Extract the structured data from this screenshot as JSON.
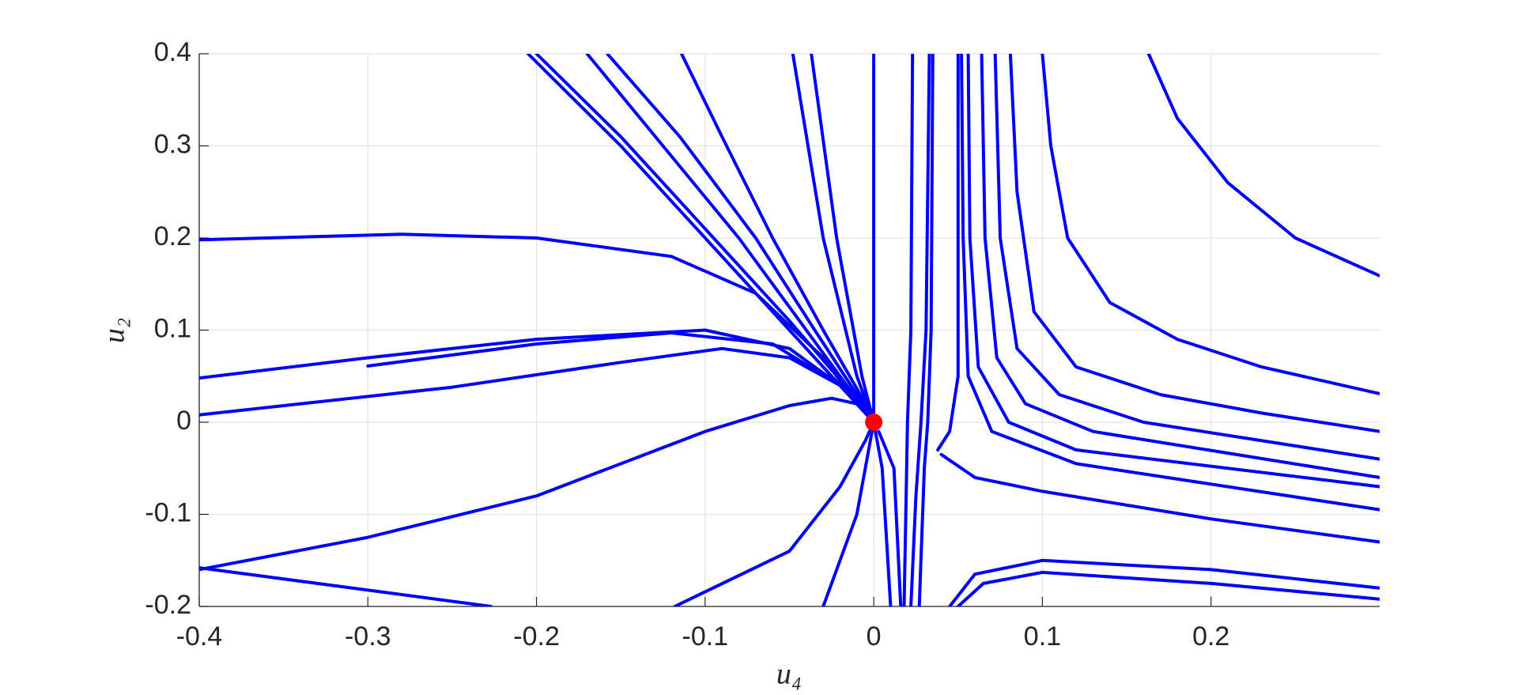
{
  "chart_data": {
    "type": "line",
    "xlabel": "u₄",
    "ylabel": "u₂",
    "xlim": [
      -0.4,
      0.3
    ],
    "ylim": [
      -0.2,
      0.4
    ],
    "xticks": [
      -0.4,
      -0.3,
      -0.2,
      -0.1,
      0,
      0.1,
      0.2
    ],
    "yticks": [
      -0.2,
      -0.1,
      0,
      0.1,
      0.2,
      0.3,
      0.4
    ],
    "grid": true,
    "series": [
      {
        "color": "#0000ff",
        "x": [
          -0.4,
          -0.28,
          -0.2,
          -0.12,
          -0.07,
          -0.03,
          -0.01,
          0
        ],
        "y": [
          0.198,
          0.204,
          0.2,
          0.18,
          0.14,
          0.07,
          0.02,
          0
        ]
      },
      {
        "color": "#0000ff",
        "x": [
          0,
          -0.02,
          -0.05,
          -0.1,
          -0.2,
          -0.3,
          -0.4
        ],
        "y": [
          0,
          0.04,
          0.08,
          0.1,
          0.09,
          0.07,
          0.048
        ]
      },
      {
        "color": "#0000ff",
        "x": [
          -0.3,
          -0.2,
          -0.12,
          -0.06,
          -0.02,
          0
        ],
        "y": [
          0.061,
          0.085,
          0.097,
          0.085,
          0.04,
          0
        ]
      },
      {
        "color": "#0000ff",
        "x": [
          0,
          -0.02,
          -0.05,
          -0.09,
          -0.15,
          -0.25,
          -0.4
        ],
        "y": [
          0,
          0.04,
          0.07,
          0.08,
          0.065,
          0.038,
          0.008
        ]
      },
      {
        "color": "#0000ff",
        "x": [
          0,
          -0.01,
          -0.025,
          -0.05,
          -0.1,
          -0.2,
          -0.3,
          -0.4
        ],
        "y": [
          0,
          0.02,
          0.026,
          0.018,
          -0.01,
          -0.08,
          -0.125,
          -0.16
        ]
      },
      {
        "color": "#0000ff",
        "x": [
          -0.4,
          -0.227
        ],
        "y": [
          -0.158,
          -0.2
        ]
      },
      {
        "color": "#0000ff",
        "x": [
          -0.118,
          -0.05,
          -0.02,
          -0.005,
          0
        ],
        "y": [
          -0.2,
          -0.14,
          -0.07,
          -0.02,
          0
        ]
      },
      {
        "color": "#0000ff",
        "x": [
          -0.03,
          -0.01,
          0
        ],
        "y": [
          -0.2,
          -0.1,
          0
        ]
      },
      {
        "color": "#0000ff",
        "x": [
          0,
          -0.01,
          -0.05,
          -0.1,
          -0.15,
          -0.205
        ],
        "y": [
          0,
          0.02,
          0.1,
          0.2,
          0.3,
          0.4
        ]
      },
      {
        "color": "#0000ff",
        "x": [
          0,
          -0.01,
          -0.05,
          -0.1,
          -0.15,
          -0.2
        ],
        "y": [
          0,
          0.025,
          0.11,
          0.21,
          0.31,
          0.4
        ]
      },
      {
        "color": "#0000ff",
        "x": [
          0,
          -0.01,
          -0.04,
          -0.08,
          -0.125,
          -0.17
        ],
        "y": [
          0,
          0.025,
          0.1,
          0.2,
          0.3,
          0.4
        ]
      },
      {
        "color": "#0000ff",
        "x": [
          0,
          -0.01,
          -0.035,
          -0.07,
          -0.115,
          -0.158
        ],
        "y": [
          0,
          0.03,
          0.1,
          0.2,
          0.31,
          0.4
        ]
      },
      {
        "color": "#0000ff",
        "x": [
          0,
          -0.008,
          -0.03,
          -0.06,
          -0.09,
          -0.114
        ],
        "y": [
          0,
          0.03,
          0.1,
          0.2,
          0.31,
          0.4
        ]
      },
      {
        "color": "#0000ff",
        "x": [
          -0.048,
          -0.03,
          -0.01,
          0
        ],
        "y": [
          0.4,
          0.2,
          0.05,
          0
        ]
      },
      {
        "color": "#0000ff",
        "x": [
          -0.037,
          -0.022,
          -0.007,
          0
        ],
        "y": [
          0.4,
          0.2,
          0.05,
          0
        ]
      },
      {
        "color": "#0000ff",
        "x": [
          0,
          0,
          0
        ],
        "y": [
          0.4,
          0.1,
          0
        ]
      },
      {
        "color": "#0000ff",
        "x": [
          0.023,
          0.022,
          0.02,
          0.019,
          0.018
        ],
        "y": [
          0.4,
          0.1,
          0.0,
          -0.1,
          -0.2
        ]
      },
      {
        "color": "#0000ff",
        "x": [
          0.033,
          0.031,
          0.028,
          0.025,
          0.022
        ],
        "y": [
          0.4,
          0.1,
          0.0,
          -0.08,
          -0.2
        ]
      },
      {
        "color": "#0000ff",
        "x": [
          0.035,
          0.034,
          0.032,
          0.03,
          0.027
        ],
        "y": [
          0.4,
          0.1,
          0.0,
          -0.05,
          -0.2
        ]
      },
      {
        "color": "#0000ff",
        "x": [
          0.01,
          0.005,
          0
        ],
        "y": [
          -0.2,
          -0.05,
          0
        ]
      },
      {
        "color": "#0000ff",
        "x": [
          0.016,
          0.012,
          0.003
        ],
        "y": [
          -0.2,
          -0.05,
          -0.01
        ]
      },
      {
        "color": "#0000ff",
        "x": [
          0.163,
          0.18,
          0.21,
          0.25,
          0.3
        ],
        "y": [
          0.4,
          0.33,
          0.26,
          0.2,
          0.159
        ]
      },
      {
        "color": "#0000ff",
        "x": [
          0.1,
          0.105,
          0.115,
          0.14,
          0.18,
          0.23,
          0.3
        ],
        "y": [
          0.4,
          0.3,
          0.2,
          0.13,
          0.09,
          0.06,
          0.031
        ]
      },
      {
        "color": "#0000ff",
        "x": [
          0.081,
          0.085,
          0.095,
          0.12,
          0.17,
          0.23,
          0.3
        ],
        "y": [
          0.4,
          0.25,
          0.12,
          0.06,
          0.03,
          0.01,
          -0.01
        ]
      },
      {
        "color": "#0000ff",
        "x": [
          0.072,
          0.075,
          0.085,
          0.11,
          0.16,
          0.3
        ],
        "y": [
          0.4,
          0.2,
          0.08,
          0.03,
          0.0,
          -0.04
        ]
      },
      {
        "color": "#0000ff",
        "x": [
          0.064,
          0.066,
          0.073,
          0.09,
          0.13,
          0.3
        ],
        "y": [
          0.4,
          0.2,
          0.07,
          0.02,
          -0.01,
          -0.06
        ]
      },
      {
        "color": "#0000ff",
        "x": [
          0.056,
          0.057,
          0.062,
          0.08,
          0.12,
          0.3
        ],
        "y": [
          0.4,
          0.2,
          0.06,
          0.0,
          -0.03,
          -0.07
        ]
      },
      {
        "color": "#0000ff",
        "x": [
          0.052,
          0.053,
          0.056,
          0.07,
          0.12,
          0.3
        ],
        "y": [
          0.4,
          0.2,
          0.05,
          -0.01,
          -0.045,
          -0.095
        ]
      },
      {
        "color": "#0000ff",
        "x": [
          0.05,
          0.05,
          0.05,
          0.045,
          0.038
        ],
        "y": [
          0.4,
          0.2,
          0.05,
          -0.01,
          -0.03
        ]
      },
      {
        "color": "#0000ff",
        "x": [
          0.04,
          0.06,
          0.1,
          0.2,
          0.3
        ],
        "y": [
          -0.035,
          -0.06,
          -0.075,
          -0.105,
          -0.13
        ]
      },
      {
        "color": "#0000ff",
        "x": [
          0.045,
          0.06,
          0.1,
          0.2,
          0.3
        ],
        "y": [
          -0.2,
          -0.165,
          -0.15,
          -0.16,
          -0.18
        ]
      },
      {
        "color": "#0000ff",
        "x": [
          0.05,
          0.065,
          0.1,
          0.2,
          0.3
        ],
        "y": [
          -0.2,
          -0.175,
          -0.163,
          -0.175,
          -0.192
        ]
      },
      {
        "color": "#ff0000",
        "mode": "markers",
        "x": [
          0
        ],
        "y": [
          0
        ]
      }
    ]
  }
}
